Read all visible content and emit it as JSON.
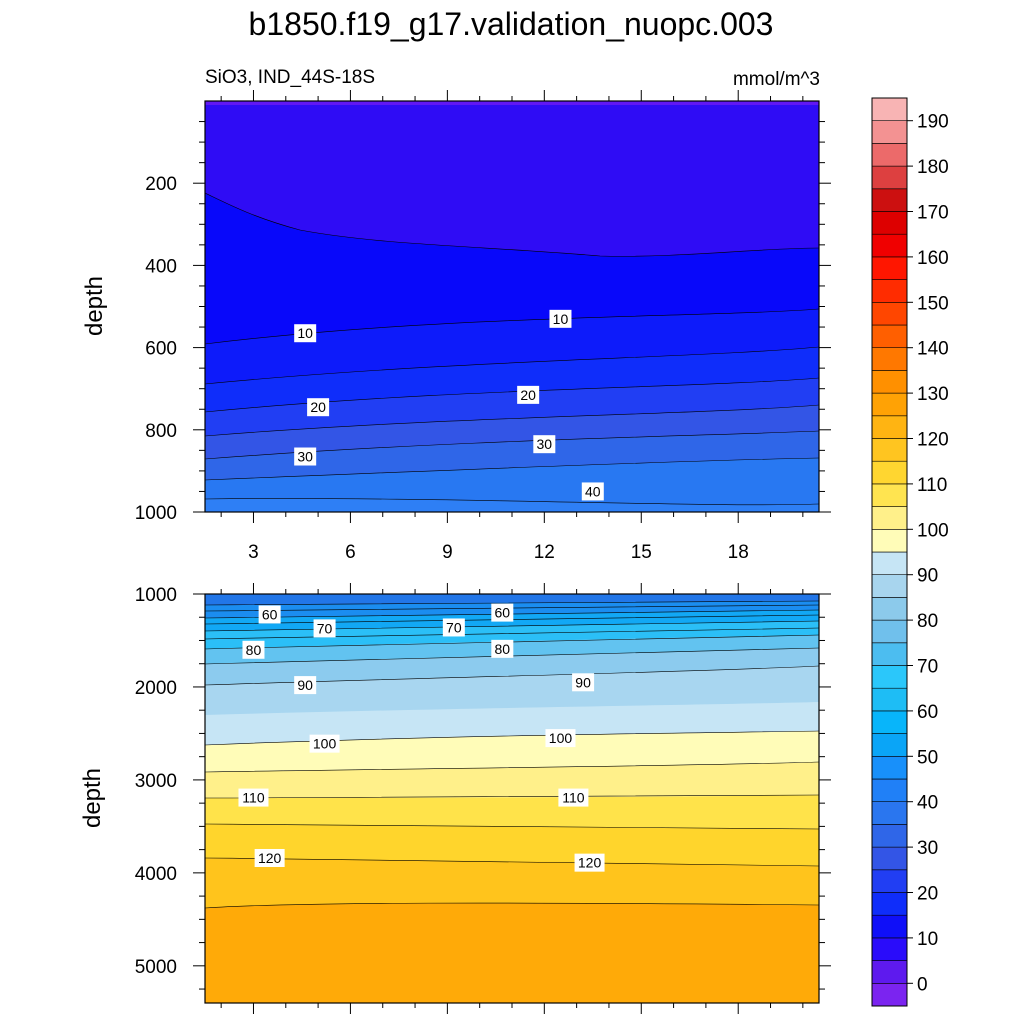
{
  "chart_data": [
    {
      "type": "contour",
      "title": "b1850.f19_g17.validation_nuopc.003",
      "left_subtitle": "SiO3, IND_44S-18S",
      "right_subtitle": "mmol/m^3",
      "ylabel": "depth",
      "xlabel": "",
      "x_ticks": [
        3,
        6,
        9,
        12,
        15,
        18
      ],
      "xlim": [
        1.5,
        20.5
      ],
      "y_ticks": [
        200,
        400,
        600,
        800,
        1000
      ],
      "ylim": [
        0,
        1000
      ],
      "y_reversed": true,
      "contour_labels": [
        {
          "x": 4.6,
          "y": 565,
          "text": "10"
        },
        {
          "x": 12.5,
          "y": 530,
          "text": "10"
        },
        {
          "x": 5.0,
          "y": 745,
          "text": "20"
        },
        {
          "x": 11.5,
          "y": 715,
          "text": "20"
        },
        {
          "x": 4.6,
          "y": 865,
          "text": "30"
        },
        {
          "x": 12.0,
          "y": 835,
          "text": "30"
        },
        {
          "x": 13.5,
          "y": 950,
          "text": "40"
        }
      ]
    },
    {
      "type": "contour",
      "ylabel": "depth",
      "xlabel": "",
      "x_ticks": [
        3,
        6,
        9,
        12,
        15,
        18
      ],
      "xlim": [
        1.5,
        20.5
      ],
      "y_ticks": [
        1000,
        2000,
        3000,
        4000,
        5000
      ],
      "ylim": [
        1000,
        5400
      ],
      "y_reversed": true,
      "contour_labels": [
        {
          "x": 3.5,
          "y": 1220,
          "text": "60"
        },
        {
          "x": 10.7,
          "y": 1200,
          "text": "60"
        },
        {
          "x": 5.2,
          "y": 1370,
          "text": "70"
        },
        {
          "x": 9.2,
          "y": 1360,
          "text": "70"
        },
        {
          "x": 3.0,
          "y": 1600,
          "text": "80"
        },
        {
          "x": 10.7,
          "y": 1590,
          "text": "80"
        },
        {
          "x": 4.6,
          "y": 1980,
          "text": "90"
        },
        {
          "x": 13.2,
          "y": 1950,
          "text": "90"
        },
        {
          "x": 5.2,
          "y": 2610,
          "text": "100"
        },
        {
          "x": 12.5,
          "y": 2550,
          "text": "100"
        },
        {
          "x": 3.0,
          "y": 3190,
          "text": "110"
        },
        {
          "x": 12.9,
          "y": 3190,
          "text": "110"
        },
        {
          "x": 3.5,
          "y": 3840,
          "text": "120"
        },
        {
          "x": 13.4,
          "y": 3890,
          "text": "120"
        }
      ]
    }
  ],
  "colorbar": {
    "levels": [
      "0",
      "10",
      "20",
      "30",
      "40",
      "50",
      "60",
      "70",
      "80",
      "90",
      "100",
      "110",
      "120",
      "130",
      "140",
      "150",
      "160",
      "170",
      "180",
      "190"
    ],
    "colors": [
      "#7b24f0",
      "#5e1aee",
      "#2a0cfa",
      "#0f0ff8",
      "#0f2dfa",
      "#213ef3",
      "#3355e6",
      "#2f66e8",
      "#2a76ef",
      "#2080f7",
      "#1890fa",
      "#0aa5f7",
      "#08b5fa",
      "#1ebdf5",
      "#2bc7fa",
      "#4cbdf0",
      "#70c0ec",
      "#8ccaeb",
      "#a8d5ee",
      "#c6e5f5",
      "#fffcb8",
      "#fff08a",
      "#ffe450",
      "#ffd630",
      "#ffc520",
      "#ffb412",
      "#ffa205",
      "#ff9000",
      "#ff7800",
      "#ff5f00",
      "#ff4600",
      "#ff2c00",
      "#ff1600",
      "#f00000",
      "#dd0000",
      "#cc1010",
      "#dd4040",
      "#ec6a6a",
      "#f39292",
      "#f8b4b4"
    ]
  }
}
